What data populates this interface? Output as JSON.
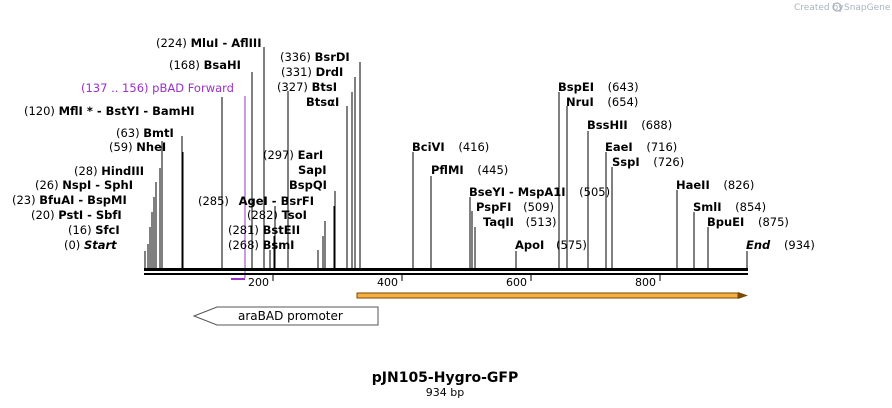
{
  "credit": {
    "text": "Created by",
    "brand": "SnapGene"
  },
  "map": {
    "name": "pJN105-Hygro-GFP",
    "length_label": "934 bp",
    "length_bp": 934,
    "axis_ticks": [
      "200",
      "400",
      "600",
      "800"
    ]
  },
  "features": {
    "primer": {
      "range": "(137 .. 156)",
      "name": "pBAD Forward",
      "color": "#9b30c8"
    },
    "promoter": {
      "name": "araBAD promoter"
    },
    "orf": {
      "color_fill": "#f5b041",
      "color_stroke": "#7a4a00"
    }
  },
  "sites": [
    {
      "pos": "(224)",
      "name": "MluI - AflIII"
    },
    {
      "pos": "(168)",
      "name": "BsaHI"
    },
    {
      "pos": "(120)",
      "name": "MflI * - BstYI - BamHI"
    },
    {
      "pos": "(63)",
      "name": "BmtI"
    },
    {
      "pos": "(59)",
      "name": "NheI"
    },
    {
      "pos": "(28)",
      "name": "HindIII"
    },
    {
      "pos": "(26)",
      "name": "NspI - SphI"
    },
    {
      "pos": "(23)",
      "name": "BfuAI - BspMI"
    },
    {
      "pos": "(20)",
      "name": "PstI - SbfI"
    },
    {
      "pos": "(16)",
      "name": "SfcI"
    },
    {
      "pos": "(0)",
      "name": "Start"
    },
    {
      "pos": "(336)",
      "name": "BsrDI"
    },
    {
      "pos": "(331)",
      "name": "DrdI"
    },
    {
      "pos": "(327)",
      "name": "BtsI"
    },
    {
      "pos": "",
      "name": "BtsαI"
    },
    {
      "pos": "(297)",
      "name": "EarI"
    },
    {
      "pos": "",
      "name": "SapI"
    },
    {
      "pos": "",
      "name": "BspQI"
    },
    {
      "pos": "(285)",
      "name": "AgeI - BsrFI"
    },
    {
      "pos": "(282)",
      "name": "TsoI"
    },
    {
      "pos": "(281)",
      "name": "BstEII"
    },
    {
      "pos": "(268)",
      "name": "BsmI"
    },
    {
      "pos": "(416)",
      "name": "BciVI"
    },
    {
      "pos": "(445)",
      "name": "PflMI"
    },
    {
      "pos": "(505)",
      "name": "BseYI - MspA1I"
    },
    {
      "pos": "(509)",
      "name": "PspFI"
    },
    {
      "pos": "(513)",
      "name": "TaqII"
    },
    {
      "pos": "(575)",
      "name": "ApoI"
    },
    {
      "pos": "(643)",
      "name": "BspEI"
    },
    {
      "pos": "(654)",
      "name": "NruI"
    },
    {
      "pos": "(688)",
      "name": "BssHII"
    },
    {
      "pos": "(716)",
      "name": "EaeI"
    },
    {
      "pos": "(726)",
      "name": "SspI"
    },
    {
      "pos": "(826)",
      "name": "HaeII"
    },
    {
      "pos": "(854)",
      "name": "SmlI"
    },
    {
      "pos": "(875)",
      "name": "BpuEI"
    },
    {
      "pos": "(934)",
      "name": "End"
    }
  ]
}
